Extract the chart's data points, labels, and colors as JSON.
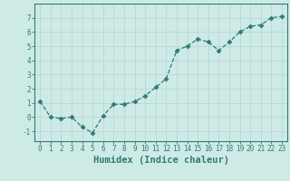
{
  "x": [
    0,
    1,
    2,
    3,
    4,
    5,
    6,
    7,
    8,
    9,
    10,
    11,
    12,
    13,
    14,
    15,
    16,
    17,
    18,
    19,
    20,
    21,
    22,
    23
  ],
  "y": [
    1.1,
    0.0,
    -0.1,
    0.0,
    -0.7,
    -1.1,
    0.1,
    0.9,
    0.9,
    1.1,
    1.5,
    2.1,
    2.7,
    4.7,
    5.0,
    5.5,
    5.3,
    4.7,
    5.3,
    6.0,
    6.4,
    6.5,
    7.0,
    7.1
  ],
  "line_color": "#2e7d6e",
  "marker": "D",
  "marker_size": 2.5,
  "bg_color": "#ceeae7",
  "grid_color": "#b8d8d4",
  "xlabel": "Humidex (Indice chaleur)",
  "xlim": [
    -0.5,
    23.5
  ],
  "ylim": [
    -1.7,
    8.0
  ],
  "yticks": [
    -1,
    0,
    1,
    2,
    3,
    4,
    5,
    6,
    7
  ],
  "xticks": [
    0,
    1,
    2,
    3,
    4,
    5,
    6,
    7,
    8,
    9,
    10,
    11,
    12,
    13,
    14,
    15,
    16,
    17,
    18,
    19,
    20,
    21,
    22,
    23
  ],
  "tick_fontsize": 5.5,
  "xlabel_fontsize": 7.5,
  "axes_color": "#2e7d6e"
}
